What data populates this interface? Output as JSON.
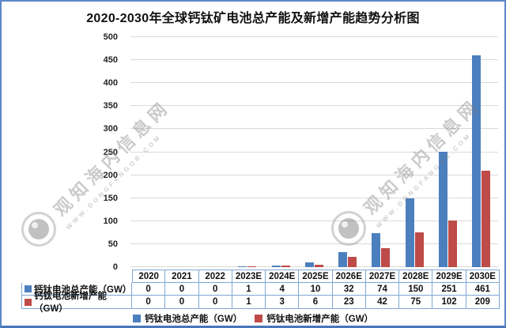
{
  "title": "2020-2030年全球钙钛矿电池总产能及新增产能趋势分析图",
  "colors": {
    "total_series": "#4c7fbe",
    "new_series": "#be4b48",
    "gridline": "#d9d9d9",
    "table_border": "#7fa8d4",
    "figure_border": "#5b87c5"
  },
  "watermark": {
    "text": "观知海内信息网",
    "subtext": "WWW.DONGFANGOB.COM"
  },
  "chart_data": {
    "type": "bar",
    "title": "2020-2030年全球钙钛矿电池总产能及新增产能趋势分析图",
    "categories": [
      "2020",
      "2021",
      "2022",
      "2023E",
      "2024E",
      "2025E",
      "2026E",
      "2027E",
      "2028E",
      "2029E",
      "2030E"
    ],
    "series": [
      {
        "name": "钙钛电池总产能（GW）",
        "color": "#4c7fbe",
        "values": [
          0,
          0,
          0,
          1,
          4,
          10,
          32,
          74,
          150,
          251,
          461
        ]
      },
      {
        "name": "钙钛电池新增产能（GW）",
        "color": "#be4b48",
        "values": [
          0,
          0,
          0,
          1,
          3,
          6,
          23,
          42,
          75,
          102,
          209
        ]
      }
    ],
    "xlabel": "",
    "ylabel": "",
    "ylim": [
      0,
      500
    ],
    "yticks": [
      0,
      50,
      100,
      150,
      200,
      250,
      300,
      350,
      400,
      450,
      500
    ],
    "grid": true,
    "legend_position": "bottom"
  },
  "table": {
    "header": [
      "2020",
      "2021",
      "2022",
      "2023E",
      "2024E",
      "2025E",
      "2026E",
      "2027E",
      "2028E",
      "2029E",
      "2030E"
    ],
    "rows": [
      {
        "label": "钙钛电池总产能（GW）",
        "color": "#4c7fbe",
        "values": [
          "0",
          "0",
          "0",
          "1",
          "4",
          "10",
          "32",
          "74",
          "150",
          "251",
          "461"
        ]
      },
      {
        "label": "钙钛电池新增产能（GW）",
        "color": "#be4b48",
        "values": [
          "0",
          "0",
          "0",
          "1",
          "3",
          "6",
          "23",
          "42",
          "75",
          "102",
          "209"
        ]
      }
    ]
  },
  "legend": {
    "items": [
      {
        "label": "钙钛电池总产能（GW）",
        "color": "#4c7fbe"
      },
      {
        "label": "钙钛电池新增产能（GW）",
        "color": "#be4b48"
      }
    ]
  }
}
